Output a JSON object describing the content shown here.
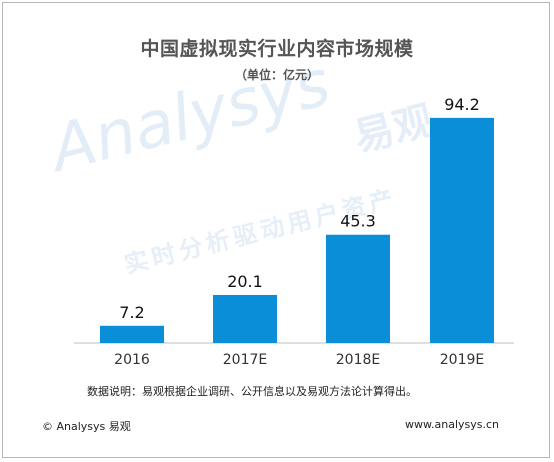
{
  "header": {
    "title": "中国虚拟现实行业内容市场规模",
    "unit": "（单位：亿元）"
  },
  "watermark": {
    "main": "Analysys",
    "cn": "易观",
    "sub": "实时分析驱动用户资产"
  },
  "chart_data": {
    "type": "bar",
    "title": "中国虚拟现实行业内容市场规模",
    "unit": "（单位：亿元）",
    "categories": [
      "2016",
      "2017E",
      "2018E",
      "2019E"
    ],
    "values": [
      7.2,
      20.1,
      45.3,
      94.2
    ],
    "labels": [
      "7.2",
      "20.1",
      "45.3",
      "94.2"
    ],
    "ylim": [
      0,
      100
    ],
    "colors": [
      "#0b8ed8",
      "#0b8ed8",
      "#0b8ed8",
      "#0b8ed8"
    ],
    "grid": false,
    "legend": "none"
  },
  "footer": {
    "note": "数据说明：易观根据企业调研、公开信息以及易观方法论计算得出。",
    "brand": "© Analysys 易观",
    "site": "www.analysys.cn"
  }
}
